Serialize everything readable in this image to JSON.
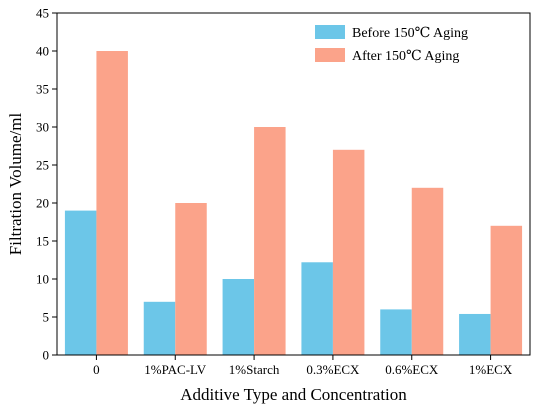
{
  "chart_data": {
    "type": "bar",
    "title": "",
    "xlabel": "Additive Type and Concentration",
    "ylabel": "Filtration Volume/ml",
    "categories": [
      "0",
      "1%PAC-LV",
      "1%Starch",
      "0.3%ECX",
      "0.6%ECX",
      "1%ECX"
    ],
    "series": [
      {
        "name": "Before 150℃ Aging",
        "color": "#6cc6e8",
        "values": [
          19,
          7,
          10,
          12.2,
          6,
          5.4
        ]
      },
      {
        "name": "After 150℃ Aging",
        "color": "#fba38a",
        "values": [
          40,
          20,
          30,
          27,
          22,
          17
        ]
      }
    ],
    "ylim": [
      0,
      45
    ],
    "yticks": [
      0,
      5,
      10,
      15,
      20,
      25,
      30,
      35,
      40,
      45
    ],
    "grid": false,
    "legend_position": "top-right"
  }
}
